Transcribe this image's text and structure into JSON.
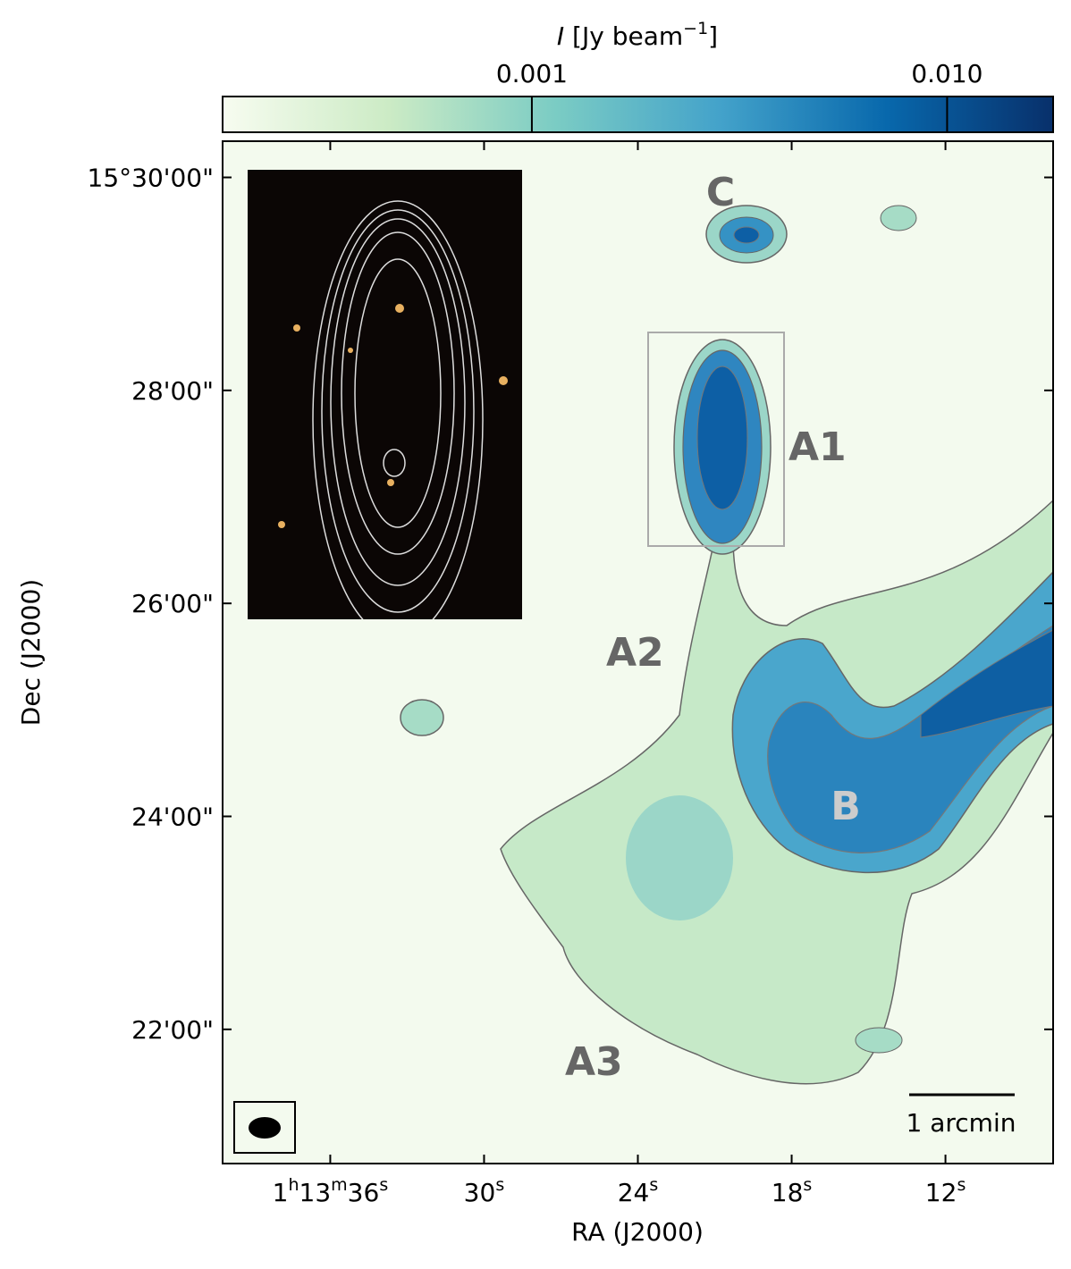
{
  "chart_data": {
    "type": "image",
    "xlabel": "RA (J2000)",
    "ylabel": "Dec (J2000)",
    "xlim": [
      40.2,
      7.8
    ],
    "xticks": [
      {
        "value": 36,
        "label": "1h13m36s"
      },
      {
        "value": 30,
        "label": "30s"
      },
      {
        "value": 24,
        "label": "24s"
      },
      {
        "value": 18,
        "label": "18s"
      },
      {
        "value": 12,
        "label": "12s"
      }
    ],
    "ylim": [
      20.74,
      30.34
    ],
    "yticks": [
      {
        "value": 30,
        "label": "15°30'00\""
      },
      {
        "value": 28,
        "label": "28'00\""
      },
      {
        "value": 26,
        "label": "26'00\""
      },
      {
        "value": 24,
        "label": "24'00\""
      },
      {
        "value": 22,
        "label": "22'00\""
      }
    ],
    "colorbar": {
      "label": [
        "I",
        " [Jy beam",
        "−1",
        "]"
      ],
      "log": true,
      "clim": [
        0.00018,
        0.018
      ],
      "ticks": [
        0.001,
        {
          "value": 0.01,
          "label": "0.010"
        }
      ],
      "colors": [
        "#f7fcf0",
        "#ccebc5",
        "#7bccc4",
        "#43a2ca",
        "#0868ac",
        "#08306b"
      ]
    },
    "annotations": [
      "C",
      "A1",
      "A2",
      "A3",
      "B"
    ],
    "scalebar": "1 arcmin"
  }
}
